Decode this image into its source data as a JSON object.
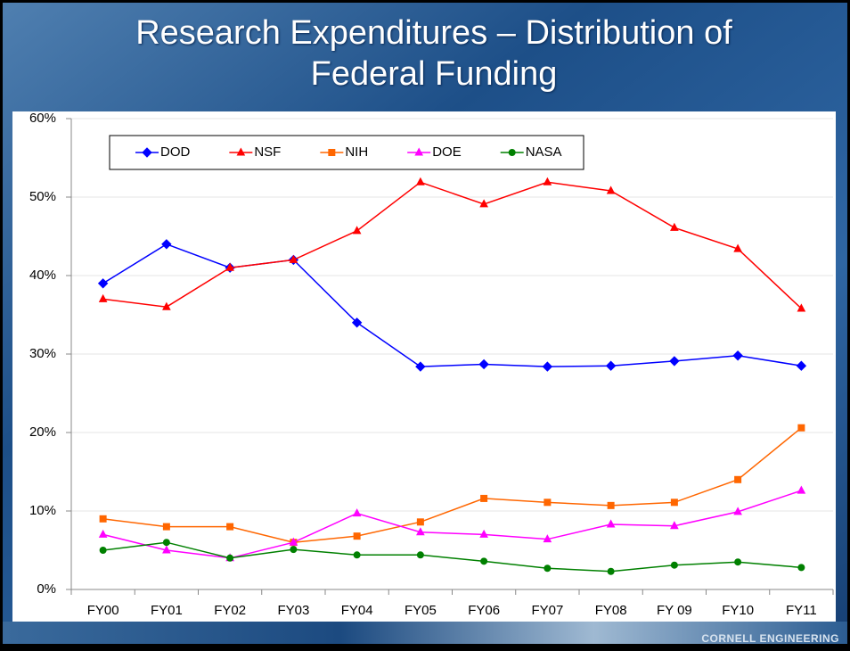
{
  "chart_data": {
    "type": "line",
    "title": "Research Expenditures – Distribution of Federal Funding",
    "categories": [
      "FY00",
      "FY01",
      "FY02",
      "FY03",
      "FY04",
      "FY05",
      "FY06",
      "FY07",
      "FY08",
      "FY 09",
      "FY10",
      "FY11"
    ],
    "series": [
      {
        "name": "DOD",
        "color": "#0000ff",
        "marker": "diamond",
        "values": [
          39,
          44,
          41,
          42,
          34,
          28.4,
          28.7,
          28.4,
          28.5,
          29.1,
          29.8,
          28.5
        ]
      },
      {
        "name": "NSF",
        "color": "#ff0000",
        "marker": "triangle",
        "values": [
          37,
          36,
          41,
          42,
          45.7,
          51.9,
          49.1,
          51.9,
          50.8,
          46.1,
          43.4,
          35.8
        ]
      },
      {
        "name": "NIH",
        "color": "#ff6600",
        "marker": "square",
        "values": [
          9,
          8,
          8,
          6,
          6.8,
          8.6,
          11.6,
          11.1,
          10.7,
          11.1,
          14,
          20.6
        ]
      },
      {
        "name": "DOE",
        "color": "#ff00ff",
        "marker": "triangle",
        "values": [
          7,
          5,
          4,
          6,
          9.7,
          7.3,
          7,
          6.4,
          8.3,
          8.1,
          9.9,
          12.6
        ]
      },
      {
        "name": "NASA",
        "color": "#008000",
        "marker": "circle",
        "values": [
          5,
          6,
          4,
          5.1,
          4.4,
          4.4,
          3.6,
          2.7,
          2.3,
          3.1,
          3.5,
          2.8
        ]
      }
    ],
    "ylim": [
      0,
      60
    ],
    "yticks": [
      {
        "value": 0,
        "label": "0%"
      },
      {
        "value": 10,
        "label": "10%"
      },
      {
        "value": 20,
        "label": "20%"
      },
      {
        "value": 30,
        "label": "30%"
      },
      {
        "value": 40,
        "label": "40%"
      },
      {
        "value": 50,
        "label": "50%"
      },
      {
        "value": 60,
        "label": "60%"
      }
    ],
    "grid": true,
    "legend": "top"
  },
  "footer": "CORNELL ENGINEERING"
}
